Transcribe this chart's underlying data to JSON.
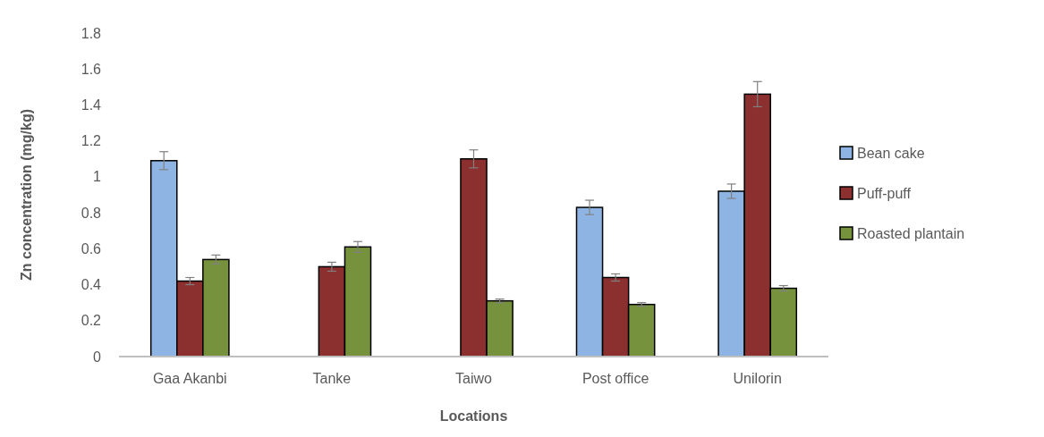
{
  "chart_data": {
    "type": "bar",
    "xlabel": "Locations",
    "ylabel": "Zn concentration (mg/kg)",
    "categories": [
      "Gaa Akanbi",
      "Tanke",
      "Taiwo",
      "Post office",
      "Unilorin"
    ],
    "series": [
      {
        "name": "Bean cake",
        "color": "#8eb4e3",
        "values": [
          1.09,
          null,
          null,
          0.83,
          0.92
        ],
        "errors": [
          0.05,
          null,
          null,
          0.04,
          0.04
        ]
      },
      {
        "name": "Puff-puff",
        "color": "#8b2f2f",
        "values": [
          0.42,
          0.5,
          1.1,
          0.44,
          1.46
        ],
        "errors": [
          0.02,
          0.025,
          0.05,
          0.02,
          0.07
        ]
      },
      {
        "name": "Roasted plantain",
        "color": "#76923c",
        "values": [
          0.54,
          0.61,
          0.31,
          0.29,
          0.38
        ],
        "errors": [
          0.025,
          0.03,
          0.01,
          0.01,
          0.015
        ]
      }
    ],
    "ylim": [
      0,
      1.8
    ],
    "yticks": [
      0,
      0.2,
      0.4,
      0.6,
      0.8,
      1,
      1.2,
      1.4,
      1.6,
      1.8
    ],
    "grid": false,
    "legend": "right"
  }
}
